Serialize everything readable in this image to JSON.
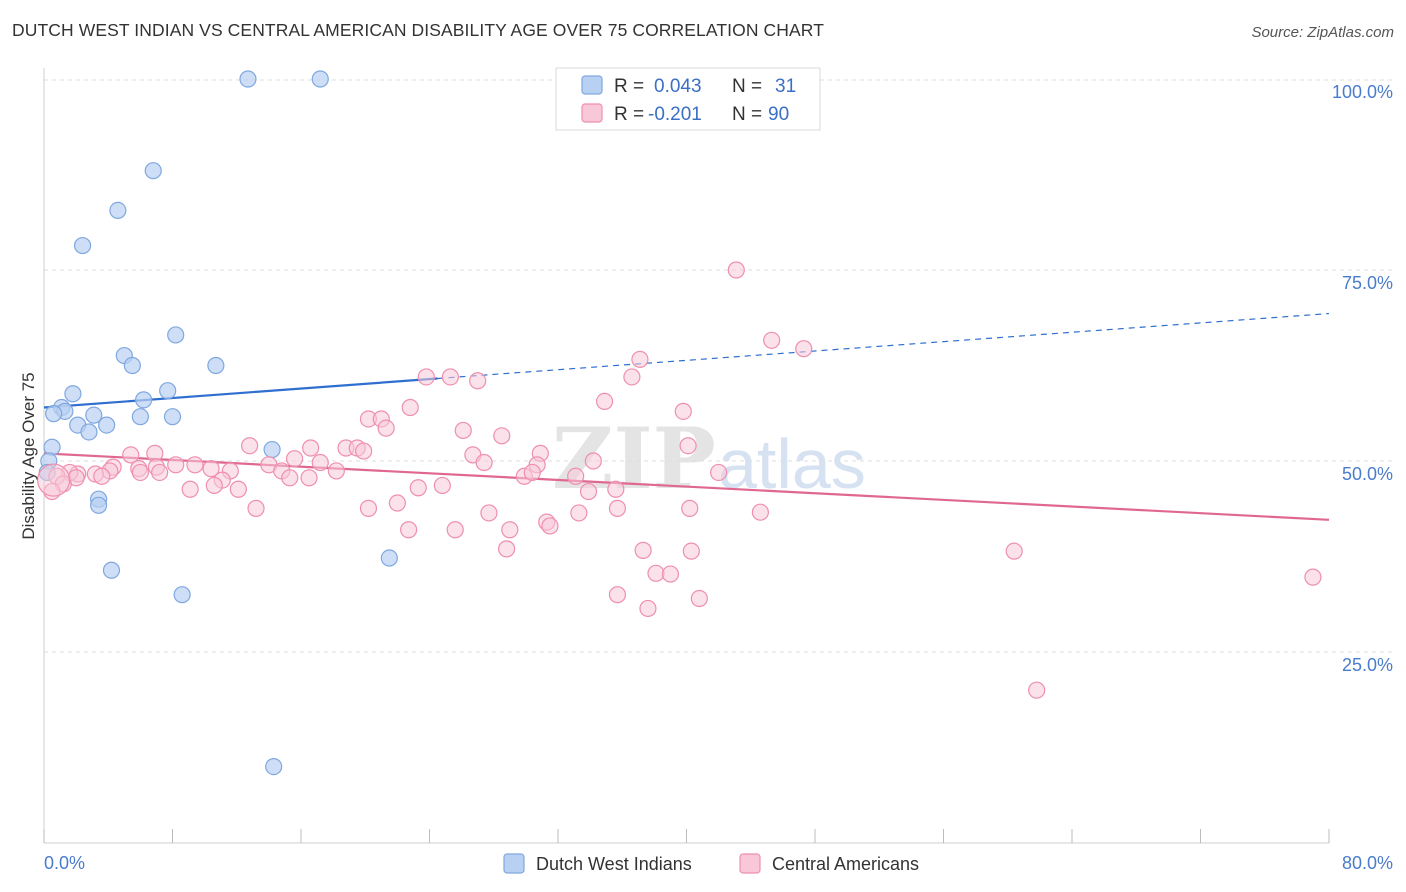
{
  "title": "DUTCH WEST INDIAN VS CENTRAL AMERICAN DISABILITY AGE OVER 75 CORRELATION CHART",
  "source": "Source: ZipAtlas.com",
  "watermark": {
    "part1": "ZIP",
    "part2": "atlas"
  },
  "legend": {
    "rows": [
      {
        "r_label": "R =",
        "r_value": "0.043",
        "n_label": "N =",
        "n_value": "31",
        "color": "#7fa8e0",
        "fill": "#b8d0f2"
      },
      {
        "r_label": "R =",
        "r_value": "-0.201",
        "n_label": "N =",
        "n_value": "90",
        "color": "#ee8fae",
        "fill": "#f8c8d8"
      }
    ]
  },
  "bottom_legend": {
    "series1": "Dutch West Indians",
    "series2": "Central Americans"
  },
  "colors": {
    "blue": "#7fa8e0",
    "blue_fill": "#b8d0f2",
    "blue_line": "#2f6fd0",
    "pink": "#ee8fae",
    "pink_fill": "#f8c8d8",
    "pink_line": "#e0688f",
    "grid": "#dedede",
    "axis_label": "#4a7ccc"
  },
  "chart_data": {
    "type": "scatter",
    "title": "DUTCH WEST INDIAN VS CENTRAL AMERICAN DISABILITY AGE OVER 75 CORRELATION CHART",
    "xlabel": "",
    "ylabel": "Disability Age Over 75",
    "xlim": [
      0,
      80
    ],
    "ylim": [
      0,
      104
    ],
    "x_tick_labels": [
      "0.0%",
      "80.0%"
    ],
    "y_ticks": [
      25,
      50,
      75,
      100
    ],
    "y_tick_labels": [
      "25.0%",
      "50.0%",
      "75.0%",
      "100.0%"
    ],
    "grid": "horizontal dashed",
    "legend_position": "top-center",
    "series": [
      {
        "name": "Dutch West Indians",
        "r": 0.043,
        "n": 31,
        "trend": {
          "x_solid": [
            0,
            24.5
          ],
          "y_solid": [
            57.0,
            60.8
          ],
          "x_dashed": [
            24.5,
            80
          ],
          "y_dashed": [
            60.8,
            69.3
          ]
        },
        "points": [
          [
            12.7,
            100.0
          ],
          [
            17.2,
            100.0
          ],
          [
            6.8,
            88.0
          ],
          [
            4.6,
            82.8
          ],
          [
            2.4,
            78.2
          ],
          [
            8.2,
            66.5
          ],
          [
            5.0,
            63.8
          ],
          [
            5.5,
            62.5
          ],
          [
            10.7,
            62.5
          ],
          [
            7.7,
            59.2
          ],
          [
            1.8,
            58.8
          ],
          [
            6.2,
            58.0
          ],
          [
            1.1,
            57.0
          ],
          [
            1.3,
            56.5
          ],
          [
            0.6,
            56.2
          ],
          [
            3.1,
            56.0
          ],
          [
            6.0,
            55.8
          ],
          [
            8.0,
            55.8
          ],
          [
            2.1,
            54.7
          ],
          [
            3.9,
            54.7
          ],
          [
            2.8,
            53.8
          ],
          [
            0.5,
            51.8
          ],
          [
            14.2,
            51.5
          ],
          [
            3.4,
            45.0
          ],
          [
            3.4,
            44.2
          ],
          [
            4.2,
            35.7
          ],
          [
            8.6,
            32.5
          ],
          [
            21.5,
            37.3
          ],
          [
            14.3,
            10.0
          ],
          [
            0.3,
            50.0
          ],
          [
            0.2,
            48.5
          ]
        ]
      },
      {
        "name": "Central Americans",
        "r": -0.201,
        "n": 90,
        "trend": {
          "x": [
            0,
            80
          ],
          "y": [
            51.0,
            42.3
          ]
        },
        "points": [
          [
            43.1,
            75.0
          ],
          [
            45.3,
            65.8
          ],
          [
            47.3,
            64.7
          ],
          [
            37.1,
            63.3
          ],
          [
            36.6,
            61.0
          ],
          [
            23.8,
            61.0
          ],
          [
            25.3,
            61.0
          ],
          [
            27.0,
            60.5
          ],
          [
            34.9,
            57.8
          ],
          [
            22.8,
            57.0
          ],
          [
            39.8,
            56.5
          ],
          [
            20.2,
            55.5
          ],
          [
            21.0,
            55.5
          ],
          [
            21.3,
            54.3
          ],
          [
            26.1,
            54.0
          ],
          [
            28.5,
            53.3
          ],
          [
            40.1,
            52.0
          ],
          [
            12.8,
            52.0
          ],
          [
            16.6,
            51.7
          ],
          [
            18.8,
            51.7
          ],
          [
            19.5,
            51.7
          ],
          [
            19.9,
            51.3
          ],
          [
            5.4,
            50.8
          ],
          [
            6.9,
            51.0
          ],
          [
            15.6,
            50.3
          ],
          [
            26.7,
            50.8
          ],
          [
            30.9,
            51.0
          ],
          [
            34.2,
            50.0
          ],
          [
            30.7,
            49.5
          ],
          [
            17.2,
            49.8
          ],
          [
            9.4,
            49.5
          ],
          [
            14.0,
            49.5
          ],
          [
            8.2,
            49.5
          ],
          [
            7.0,
            49.2
          ],
          [
            10.4,
            49.0
          ],
          [
            4.3,
            49.2
          ],
          [
            5.9,
            49.0
          ],
          [
            14.8,
            48.7
          ],
          [
            18.2,
            48.7
          ],
          [
            11.6,
            48.7
          ],
          [
            29.9,
            48.0
          ],
          [
            30.4,
            48.5
          ],
          [
            4.1,
            48.7
          ],
          [
            3.2,
            48.3
          ],
          [
            2.1,
            48.3
          ],
          [
            3.6,
            48.0
          ],
          [
            7.2,
            48.5
          ],
          [
            11.1,
            47.5
          ],
          [
            15.3,
            47.8
          ],
          [
            16.5,
            47.8
          ],
          [
            6.0,
            48.5
          ],
          [
            1.6,
            48.5
          ],
          [
            2.0,
            47.8
          ],
          [
            0.8,
            48.0
          ],
          [
            1.2,
            47.0
          ],
          [
            0.5,
            46.0
          ],
          [
            9.1,
            46.3
          ],
          [
            12.1,
            46.3
          ],
          [
            10.6,
            46.8
          ],
          [
            24.8,
            46.8
          ],
          [
            23.3,
            46.5
          ],
          [
            33.9,
            46.0
          ],
          [
            35.6,
            46.3
          ],
          [
            22.0,
            44.5
          ],
          [
            35.7,
            43.8
          ],
          [
            40.2,
            43.8
          ],
          [
            44.6,
            43.3
          ],
          [
            27.7,
            43.2
          ],
          [
            33.3,
            43.2
          ],
          [
            31.3,
            42.0
          ],
          [
            29.0,
            41.0
          ],
          [
            25.6,
            41.0
          ],
          [
            22.7,
            41.0
          ],
          [
            13.2,
            43.8
          ],
          [
            20.2,
            43.8
          ],
          [
            31.5,
            41.5
          ],
          [
            37.3,
            38.3
          ],
          [
            28.8,
            38.5
          ],
          [
            40.3,
            38.2
          ],
          [
            60.4,
            38.2
          ],
          [
            38.1,
            35.3
          ],
          [
            39.0,
            35.2
          ],
          [
            79.0,
            34.8
          ],
          [
            35.7,
            32.5
          ],
          [
            40.8,
            32.0
          ],
          [
            37.6,
            30.7
          ],
          [
            61.8,
            20.0
          ],
          [
            27.4,
            49.8
          ],
          [
            42.0,
            48.5
          ],
          [
            33.1,
            48.0
          ]
        ]
      }
    ]
  }
}
